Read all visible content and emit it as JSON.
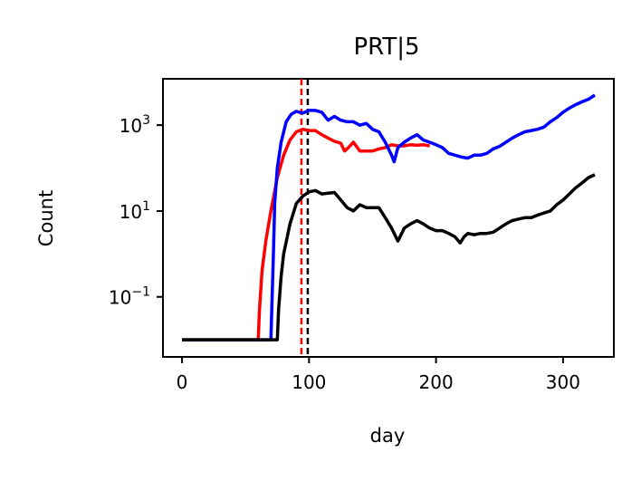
{
  "chart_data": {
    "type": "line",
    "title": "PRT|5",
    "xlabel": "day",
    "ylabel": "Count",
    "xlim": [
      -15,
      340
    ],
    "ylim": [
      0.004,
      12000
    ],
    "yscale": "log",
    "xticks": [
      0,
      100,
      200,
      300
    ],
    "yticks": [
      {
        "value": 1000,
        "base": "10",
        "exp": "3"
      },
      {
        "value": 10,
        "base": "10",
        "exp": "1"
      },
      {
        "value": 0.1,
        "base": "10",
        "exp": "−1"
      }
    ],
    "vlines": [
      {
        "x": 94,
        "color": "#ff0000",
        "style": "dashed"
      },
      {
        "x": 99,
        "color": "#000000",
        "style": "dashed"
      }
    ],
    "series": [
      {
        "color": "#ff0000",
        "points": [
          [
            0,
            0.01
          ],
          [
            60,
            0.01
          ],
          [
            61,
            0.05
          ],
          [
            63,
            0.4
          ],
          [
            66,
            2
          ],
          [
            70,
            10
          ],
          [
            75,
            60
          ],
          [
            80,
            200
          ],
          [
            85,
            450
          ],
          [
            90,
            700
          ],
          [
            95,
            800
          ],
          [
            100,
            750
          ],
          [
            105,
            750
          ],
          [
            110,
            600
          ],
          [
            115,
            500
          ],
          [
            120,
            420
          ],
          [
            125,
            380
          ],
          [
            128,
            250
          ],
          [
            131,
            300
          ],
          [
            135,
            400
          ],
          [
            140,
            250
          ],
          [
            145,
            250
          ],
          [
            150,
            250
          ],
          [
            155,
            280
          ],
          [
            160,
            300
          ],
          [
            165,
            350
          ],
          [
            170,
            330
          ],
          [
            175,
            330
          ],
          [
            180,
            350
          ],
          [
            185,
            340
          ],
          [
            190,
            350
          ],
          [
            195,
            330
          ]
        ]
      },
      {
        "color": "#0000ff",
        "points": [
          [
            0,
            0.01
          ],
          [
            70,
            0.01
          ],
          [
            71,
            0.1
          ],
          [
            72,
            1
          ],
          [
            73,
            15
          ],
          [
            75,
            100
          ],
          [
            78,
            400
          ],
          [
            82,
            1200
          ],
          [
            86,
            1800
          ],
          [
            90,
            2100
          ],
          [
            95,
            1900
          ],
          [
            100,
            2200
          ],
          [
            105,
            2200
          ],
          [
            110,
            2000
          ],
          [
            115,
            1300
          ],
          [
            120,
            1600
          ],
          [
            125,
            1300
          ],
          [
            130,
            1200
          ],
          [
            135,
            1200
          ],
          [
            140,
            1000
          ],
          [
            145,
            1100
          ],
          [
            150,
            800
          ],
          [
            155,
            700
          ],
          [
            160,
            400
          ],
          [
            165,
            200
          ],
          [
            167,
            140
          ],
          [
            170,
            300
          ],
          [
            175,
            400
          ],
          [
            180,
            500
          ],
          [
            185,
            600
          ],
          [
            190,
            450
          ],
          [
            195,
            400
          ],
          [
            200,
            350
          ],
          [
            205,
            300
          ],
          [
            210,
            220
          ],
          [
            215,
            200
          ],
          [
            220,
            180
          ],
          [
            225,
            170
          ],
          [
            230,
            200
          ],
          [
            235,
            200
          ],
          [
            240,
            220
          ],
          [
            245,
            280
          ],
          [
            250,
            320
          ],
          [
            255,
            400
          ],
          [
            260,
            500
          ],
          [
            265,
            600
          ],
          [
            270,
            700
          ],
          [
            275,
            750
          ],
          [
            280,
            800
          ],
          [
            285,
            900
          ],
          [
            290,
            1200
          ],
          [
            295,
            1500
          ],
          [
            300,
            2000
          ],
          [
            305,
            2500
          ],
          [
            310,
            3000
          ],
          [
            315,
            3500
          ],
          [
            320,
            4000
          ],
          [
            325,
            5000
          ]
        ]
      },
      {
        "color": "#000000",
        "points": [
          [
            0,
            0.01
          ],
          [
            75,
            0.01
          ],
          [
            76,
            0.05
          ],
          [
            78,
            0.3
          ],
          [
            80,
            1
          ],
          [
            85,
            5
          ],
          [
            90,
            15
          ],
          [
            95,
            22
          ],
          [
            100,
            28
          ],
          [
            105,
            30
          ],
          [
            110,
            25
          ],
          [
            115,
            26
          ],
          [
            120,
            27
          ],
          [
            125,
            18
          ],
          [
            130,
            12
          ],
          [
            135,
            10
          ],
          [
            140,
            14
          ],
          [
            145,
            12
          ],
          [
            150,
            12
          ],
          [
            155,
            12
          ],
          [
            160,
            7
          ],
          [
            165,
            4
          ],
          [
            170,
            2
          ],
          [
            173,
            3
          ],
          [
            175,
            4
          ],
          [
            180,
            5
          ],
          [
            185,
            6
          ],
          [
            190,
            5
          ],
          [
            195,
            4
          ],
          [
            200,
            3.5
          ],
          [
            205,
            3.5
          ],
          [
            210,
            3
          ],
          [
            215,
            2.5
          ],
          [
            219,
            1.8
          ],
          [
            222,
            2.5
          ],
          [
            225,
            3
          ],
          [
            230,
            2.8
          ],
          [
            235,
            3
          ],
          [
            240,
            3
          ],
          [
            245,
            3.2
          ],
          [
            250,
            4
          ],
          [
            255,
            5
          ],
          [
            260,
            6
          ],
          [
            265,
            6.5
          ],
          [
            270,
            7
          ],
          [
            275,
            7
          ],
          [
            280,
            8
          ],
          [
            285,
            9
          ],
          [
            290,
            10
          ],
          [
            295,
            14
          ],
          [
            300,
            18
          ],
          [
            305,
            25
          ],
          [
            310,
            35
          ],
          [
            315,
            45
          ],
          [
            320,
            60
          ],
          [
            325,
            70
          ]
        ]
      }
    ]
  }
}
